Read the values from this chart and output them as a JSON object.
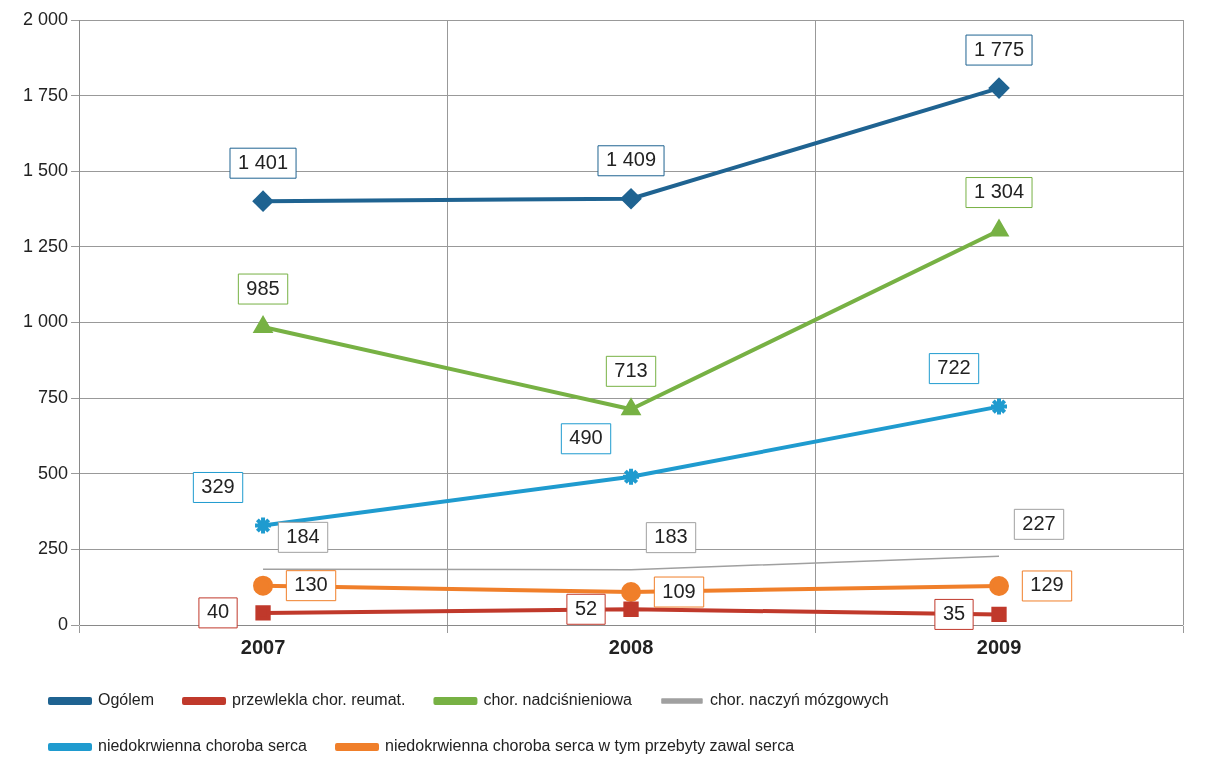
{
  "chart_data": {
    "type": "line",
    "categories": [
      "2007",
      "2008",
      "2009"
    ],
    "ylim": [
      0,
      2000
    ],
    "yticks": [
      {
        "value": 0,
        "label": "0"
      },
      {
        "value": 250,
        "label": "250"
      },
      {
        "value": 500,
        "label": "500"
      },
      {
        "value": 750,
        "label": "750"
      },
      {
        "value": 1000,
        "label": "1 000"
      },
      {
        "value": 1250,
        "label": "1 250"
      },
      {
        "value": 1500,
        "label": "1 500"
      },
      {
        "value": 1750,
        "label": "1 750"
      },
      {
        "value": 2000,
        "label": "2 000"
      }
    ],
    "grid": true,
    "legend": "bottom",
    "series": [
      {
        "name": "Ogólem",
        "color": "#1f6391",
        "marker": "diamond",
        "values": [
          1401,
          1409,
          1775
        ],
        "value_labels": [
          "1 401",
          "1 409",
          "1 775"
        ]
      },
      {
        "name": "przewlekla chor. reumat.",
        "color": "#c0392b",
        "marker": "square",
        "values": [
          40,
          52,
          35
        ],
        "value_labels": [
          "40",
          "52",
          "35"
        ]
      },
      {
        "name": "chor. nadciśnieniowa",
        "color": "#77b144",
        "marker": "triangle",
        "values": [
          985,
          713,
          1304
        ],
        "value_labels": [
          "985",
          "713",
          "1 304"
        ]
      },
      {
        "name": "chor. naczyń mózgowych",
        "color": "#a0a0a0",
        "marker": "none",
        "values": [
          184,
          183,
          227
        ],
        "value_labels": [
          "184",
          "183",
          "227"
        ]
      },
      {
        "name": "niedokrwienna choroba serca",
        "color": "#1f9bcf",
        "marker": "cross",
        "values": [
          329,
          490,
          722
        ],
        "value_labels": [
          "329",
          "490",
          "722"
        ]
      },
      {
        "name": "niedokrwienna choroba serca w tym przebyty zawal serca",
        "color": "#f07f2a",
        "marker": "circle",
        "values": [
          130,
          109,
          129
        ],
        "value_labels": [
          "130",
          "109",
          "129"
        ]
      }
    ]
  }
}
